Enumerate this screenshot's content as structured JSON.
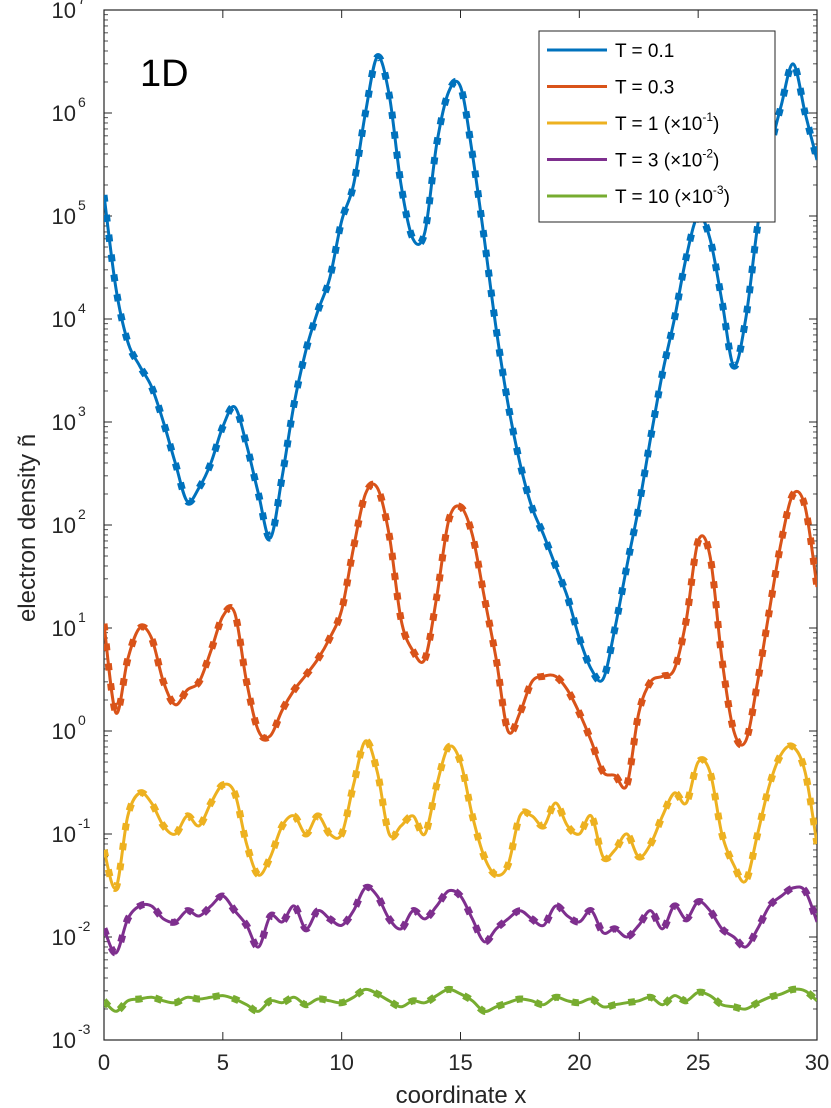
{
  "chart_data": {
    "type": "line",
    "panel_label": "1D",
    "xlabel": "coordinate x",
    "ylabel": "electron density ñ",
    "xlim": [
      0,
      30
    ],
    "ylim_log10": [
      -3,
      7
    ],
    "y_scale": "log",
    "x_ticks": [
      "0",
      "5",
      "10",
      "15",
      "20",
      "25",
      "30"
    ],
    "x_tick_values": [
      0,
      5,
      10,
      15,
      20,
      25,
      30
    ],
    "y_tick_exponents": [
      "-3",
      "-2",
      "-1",
      "0",
      "1",
      "2",
      "3",
      "4",
      "5",
      "6",
      "7"
    ],
    "y_tick_base": "10",
    "grid": false,
    "legend_position": "top-right",
    "colors": {
      "T0.1": "#0072BD",
      "T0.3": "#D95319",
      "T1": "#EDB120",
      "T3": "#7E2F8E",
      "T10": "#77AC30"
    },
    "legend": [
      {
        "label": "T = 0.1",
        "exp": ""
      },
      {
        "label": "T = 0.3",
        "exp": ""
      },
      {
        "label": "T = 1 (×10",
        "exp": "-1",
        "close": ")"
      },
      {
        "label": "T = 3 (×10",
        "exp": "-2",
        "close": ")"
      },
      {
        "label": "T = 10 (×10",
        "exp": "-3",
        "close": ")"
      }
    ],
    "series": [
      {
        "name": "T = 0.1",
        "color": "#0072BD",
        "x": [
          0,
          0.5,
          1,
          1.5,
          2,
          2.5,
          3,
          3.5,
          4,
          4.5,
          5,
          5.5,
          6,
          6.5,
          7,
          7.5,
          8,
          8.5,
          9,
          9.5,
          10,
          10.5,
          11,
          11.5,
          12,
          12.5,
          13,
          13.5,
          14,
          14.5,
          15,
          15.5,
          16,
          16.5,
          17,
          17.5,
          18,
          18.5,
          19,
          19.5,
          20,
          20.5,
          21,
          21.5,
          22,
          22.5,
          23,
          23.5,
          24,
          24.5,
          25,
          25.5,
          26,
          26.5,
          27,
          27.5,
          28,
          28.5,
          29,
          29.5,
          30
        ],
        "y": [
          160000,
          20000,
          6000,
          3500,
          2200,
          1000,
          400,
          170,
          230,
          400,
          900,
          1400,
          600,
          200,
          75,
          300,
          1500,
          5000,
          12000,
          25000,
          90000,
          200000,
          1000000,
          3500000,
          1500000,
          200000,
          60000,
          70000,
          500000,
          1600000,
          1800000,
          400000,
          60000,
          8000,
          1500,
          400,
          150,
          80,
          40,
          20,
          8,
          4,
          3.2,
          10,
          40,
          150,
          700,
          3000,
          10000,
          40000,
          100000,
          60000,
          15000,
          3500,
          10000,
          80000,
          400000,
          1200000,
          3000000,
          1000000,
          350000
        ]
      },
      {
        "name": "T = 0.3",
        "color": "#D95319",
        "x": [
          0,
          0.5,
          1,
          1.5,
          2,
          2.5,
          3,
          3.5,
          4,
          4.5,
          5,
          5.5,
          6,
          6.5,
          7,
          7.5,
          8,
          8.5,
          9,
          9.5,
          10,
          10.5,
          11,
          11.5,
          12,
          12.5,
          13,
          13.5,
          14,
          14.5,
          15,
          15.5,
          16,
          16.5,
          17,
          17.5,
          18,
          18.5,
          19,
          19.5,
          20,
          20.5,
          21,
          21.5,
          22,
          22.5,
          23,
          23.5,
          24,
          24.5,
          25,
          25.5,
          26,
          26.5,
          27,
          27.5,
          28,
          28.5,
          29,
          29.5,
          30
        ],
        "y": [
          11,
          1.5,
          5,
          10,
          8,
          3,
          1.8,
          2.5,
          3,
          6,
          13,
          14,
          3,
          1,
          0.9,
          1.6,
          2.5,
          3.5,
          5,
          8,
          15,
          60,
          200,
          230,
          80,
          12,
          6,
          5,
          20,
          110,
          150,
          80,
          20,
          5,
          1,
          1.5,
          3,
          3.4,
          3.4,
          2.5,
          1.5,
          0.8,
          0.4,
          0.37,
          0.3,
          1.5,
          3,
          3.4,
          4,
          12,
          70,
          50,
          5,
          1,
          0.8,
          3,
          15,
          70,
          200,
          150,
          25
        ]
      },
      {
        "name": "T = 1 (×10^-1)",
        "color": "#EDB120",
        "x": [
          0,
          0.5,
          1,
          1.5,
          2,
          2.5,
          3,
          3.5,
          4,
          4.5,
          5,
          5.5,
          6,
          6.5,
          7,
          7.5,
          8,
          8.5,
          9,
          9.5,
          10,
          10.5,
          11,
          11.5,
          12,
          12.5,
          13,
          13.5,
          14,
          14.5,
          15,
          15.5,
          16,
          16.5,
          17,
          17.5,
          18,
          18.5,
          19,
          19.5,
          20,
          20.5,
          21,
          21.5,
          22,
          22.5,
          23,
          23.5,
          24,
          24.5,
          25,
          25.5,
          26,
          26.5,
          27,
          27.5,
          28,
          28.5,
          29,
          29.5,
          30
        ],
        "y": [
          0.07,
          0.03,
          0.15,
          0.25,
          0.2,
          0.12,
          0.1,
          0.15,
          0.12,
          0.2,
          0.3,
          0.25,
          0.08,
          0.04,
          0.06,
          0.12,
          0.15,
          0.1,
          0.15,
          0.1,
          0.1,
          0.3,
          0.8,
          0.4,
          0.1,
          0.12,
          0.15,
          0.1,
          0.3,
          0.7,
          0.5,
          0.15,
          0.06,
          0.04,
          0.05,
          0.15,
          0.15,
          0.12,
          0.2,
          0.12,
          0.1,
          0.15,
          0.06,
          0.07,
          0.1,
          0.06,
          0.08,
          0.15,
          0.25,
          0.2,
          0.5,
          0.4,
          0.1,
          0.05,
          0.035,
          0.1,
          0.3,
          0.6,
          0.7,
          0.4,
          0.08
        ]
      },
      {
        "name": "T = 3 (×10^-2)",
        "color": "#7E2F8E",
        "x": [
          0,
          0.5,
          1,
          1.5,
          2,
          2.5,
          3,
          3.5,
          4,
          4.5,
          5,
          5.5,
          6,
          6.5,
          7,
          7.5,
          8,
          8.5,
          9,
          9.5,
          10,
          10.5,
          11,
          11.5,
          12,
          12.5,
          13,
          13.5,
          14,
          14.5,
          15,
          15.5,
          16,
          16.5,
          17,
          17.5,
          18,
          18.5,
          19,
          19.5,
          20,
          20.5,
          21,
          21.5,
          22,
          22.5,
          23,
          23.5,
          24,
          24.5,
          25,
          25.5,
          26,
          26.5,
          27,
          27.5,
          28,
          28.5,
          29,
          29.5,
          30
        ],
        "y": [
          0.012,
          0.007,
          0.015,
          0.02,
          0.02,
          0.015,
          0.014,
          0.018,
          0.016,
          0.02,
          0.025,
          0.018,
          0.013,
          0.008,
          0.016,
          0.014,
          0.02,
          0.012,
          0.018,
          0.015,
          0.013,
          0.018,
          0.03,
          0.025,
          0.015,
          0.012,
          0.018,
          0.015,
          0.02,
          0.028,
          0.025,
          0.015,
          0.009,
          0.012,
          0.015,
          0.018,
          0.015,
          0.013,
          0.02,
          0.016,
          0.014,
          0.018,
          0.011,
          0.012,
          0.01,
          0.013,
          0.018,
          0.012,
          0.02,
          0.015,
          0.022,
          0.018,
          0.012,
          0.01,
          0.008,
          0.012,
          0.02,
          0.025,
          0.03,
          0.028,
          0.014
        ]
      },
      {
        "name": "T = 10 (×10^-3)",
        "color": "#77AC30",
        "x": [
          0,
          0.5,
          1,
          1.5,
          2,
          2.5,
          3,
          3.5,
          4,
          4.5,
          5,
          5.5,
          6,
          6.5,
          7,
          7.5,
          8,
          8.5,
          9,
          9.5,
          10,
          10.5,
          11,
          11.5,
          12,
          12.5,
          13,
          13.5,
          14,
          14.5,
          15,
          15.5,
          16,
          16.5,
          17,
          17.5,
          18,
          18.5,
          19,
          19.5,
          20,
          20.5,
          21,
          21.5,
          22,
          22.5,
          23,
          23.5,
          24,
          24.5,
          25,
          25.5,
          26,
          26.5,
          27,
          27.5,
          28,
          28.5,
          29,
          29.5,
          30
        ],
        "y": [
          0.0024,
          0.0019,
          0.0024,
          0.0025,
          0.0026,
          0.0024,
          0.0023,
          0.0026,
          0.0025,
          0.0026,
          0.0027,
          0.0025,
          0.0022,
          0.0019,
          0.0024,
          0.0023,
          0.0026,
          0.0022,
          0.0025,
          0.0024,
          0.0023,
          0.0026,
          0.0031,
          0.0028,
          0.0024,
          0.0021,
          0.0024,
          0.0023,
          0.0027,
          0.0031,
          0.0028,
          0.0024,
          0.0019,
          0.0021,
          0.0023,
          0.0025,
          0.0024,
          0.0022,
          0.0026,
          0.0024,
          0.0023,
          0.0025,
          0.0021,
          0.0022,
          0.0023,
          0.0024,
          0.0026,
          0.0022,
          0.0027,
          0.0024,
          0.0029,
          0.0027,
          0.0022,
          0.0021,
          0.002,
          0.0023,
          0.0026,
          0.0028,
          0.0031,
          0.003,
          0.0024
        ]
      }
    ]
  }
}
